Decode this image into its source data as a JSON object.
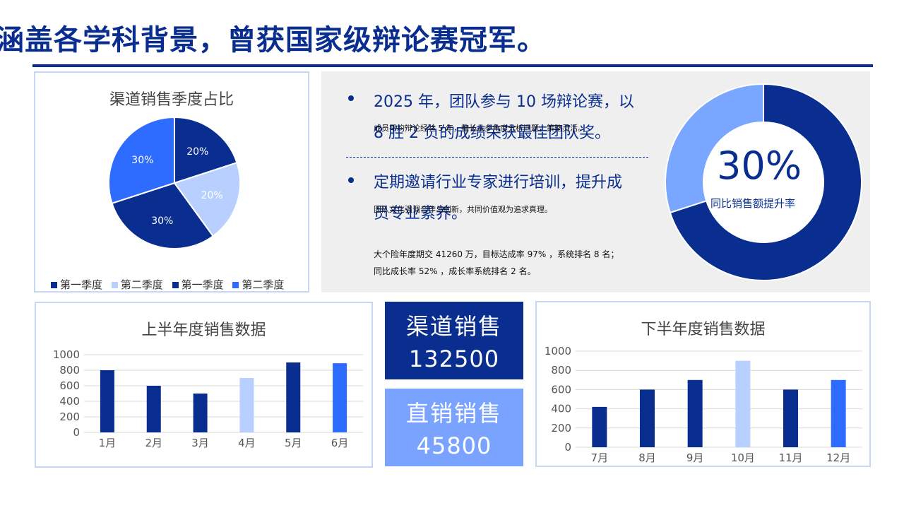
{
  "page_title": "涵盖各学科背景，曾获国家级辩论赛冠军。",
  "colors": {
    "dark": "#0a2e8f",
    "light": "#b8d0ff",
    "mid": "#2d6cff",
    "donut_light": "#79a6ff"
  },
  "pie_card": {
    "title": "渠道销售季度占比",
    "legend": [
      "第一季度",
      "第二季度",
      "第一季度",
      "第二季度"
    ],
    "chart_data": {
      "type": "pie",
      "title": "渠道销售季度占比",
      "slices": [
        {
          "label": "第一季度",
          "value": 20,
          "display": "20%",
          "color": "#0a2e8f"
        },
        {
          "label": "第二季度",
          "value": 20,
          "display": "20%",
          "color": "#b8d0ff"
        },
        {
          "label": "第一季度",
          "value": 30,
          "display": "30%",
          "color": "#0a2e8f"
        },
        {
          "label": "第二季度",
          "value": 30,
          "display": "30%",
          "color": "#2d6cff"
        }
      ]
    }
  },
  "info_panel": {
    "bullet1_text": "2025 年，团队参与 10 场辩论赛，以 8 胜 2 负的成绩荣获最佳团队奖。",
    "bullet1_sub": "成员平均辩论经验 5 年，擅长从多角度分析问题，策略灵活。",
    "bullet2_text": "定期邀请行业专家进行培训，提升成员专业素养。",
    "bullet2_sub": "团队文化强调合作与创新，共同价值观为追求真理。",
    "stat_line1": "大个险年度期交 41260 万，目标达成率 97% ，系统排名 8 名；",
    "stat_line2": "同比成长率 52% ，成长率系统排名 2 名。",
    "donut_percent": "30%",
    "donut_caption": "同比销售额提升率",
    "donut_value": 30
  },
  "bar_chart_1": {
    "title": "上半年度销售数据",
    "chart_data": {
      "type": "bar",
      "title": "上半年度销售数据",
      "categories": [
        "1月",
        "2月",
        "3月",
        "4月",
        "5月",
        "6月"
      ],
      "values": [
        800,
        600,
        500,
        700,
        900,
        890
      ],
      "colors": [
        "#0a2e8f",
        "#0a2e8f",
        "#0a2e8f",
        "#b8d0ff",
        "#0a2e8f",
        "#2d6cff"
      ],
      "ylim": [
        0,
        1000
      ],
      "yticks": [
        0,
        200,
        400,
        600,
        800,
        1000
      ],
      "grid": true
    }
  },
  "kpi_1": {
    "label": "渠道销售",
    "value": "132500"
  },
  "kpi_2": {
    "label": "直销销售",
    "value": "45800"
  },
  "bar_chart_2": {
    "title": "下半年度销售数据",
    "chart_data": {
      "type": "bar",
      "title": "下半年度销售数据",
      "categories": [
        "7月",
        "8月",
        "9月",
        "10月",
        "11月",
        "12月"
      ],
      "values": [
        420,
        600,
        700,
        900,
        600,
        700
      ],
      "colors": [
        "#0a2e8f",
        "#0a2e8f",
        "#0a2e8f",
        "#b8d0ff",
        "#0a2e8f",
        "#2d6cff"
      ],
      "ylim": [
        0,
        1000
      ],
      "yticks": [
        0,
        200,
        400,
        600,
        800,
        1000
      ],
      "grid": true
    }
  }
}
